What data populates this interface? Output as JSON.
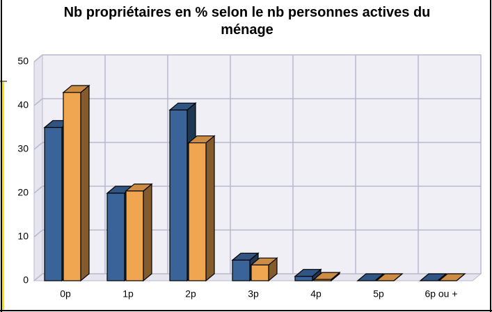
{
  "chart_data": {
    "type": "bar3d",
    "title": "Nb propriétaires en % selon le nb personnes actives du ménage",
    "categories": [
      "0p",
      "1p",
      "2p",
      "3p",
      "4p",
      "5p",
      "6p ou +"
    ],
    "series": [
      {
        "color": "#3a6499",
        "values": [
          35,
          20,
          39,
          4.7,
          1,
          0,
          0
        ]
      },
      {
        "color": "#f0a550",
        "values": [
          43,
          20.5,
          31.5,
          3.6,
          0.3,
          0,
          0
        ]
      }
    ],
    "ylim": [
      0,
      50
    ],
    "yticks": [
      0,
      10,
      20,
      30,
      40,
      50
    ],
    "grid": true
  }
}
